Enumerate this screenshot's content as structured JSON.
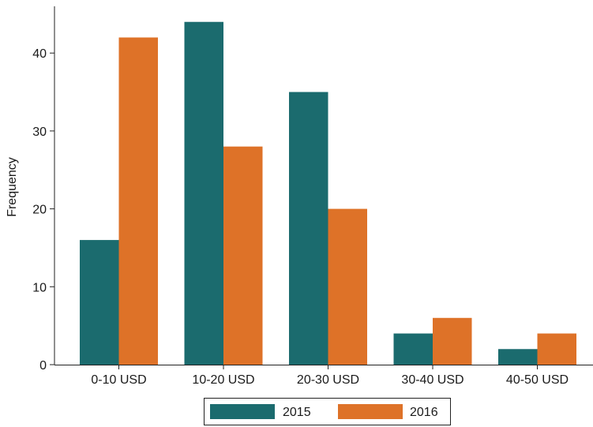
{
  "chart_data": {
    "type": "bar",
    "title": "",
    "xlabel": "",
    "ylabel": "Frequency",
    "categories": [
      "0-10 USD",
      "10-20 USD",
      "20-30 USD",
      "30-40 USD",
      "40-50 USD"
    ],
    "series": [
      {
        "name": "2015",
        "values": [
          16,
          44,
          35,
          4,
          2
        ],
        "color": "#1b6b6e"
      },
      {
        "name": "2016",
        "values": [
          42,
          28,
          20,
          6,
          4
        ],
        "color": "#de7228"
      }
    ],
    "ylim": [
      0,
      46
    ],
    "yticks": [
      0,
      10,
      20,
      30,
      40
    ],
    "grid": false,
    "legend_position": "bottom"
  }
}
